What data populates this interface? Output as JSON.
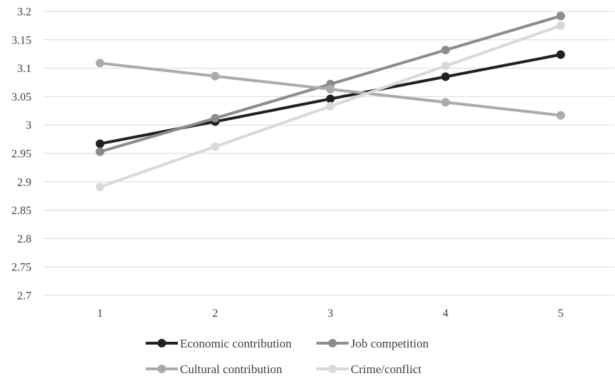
{
  "chart_data": {
    "type": "line",
    "title": "",
    "xlabel": "",
    "ylabel": "",
    "x": [
      1,
      2,
      3,
      4,
      5
    ],
    "x_tick_labels": [
      "1",
      "2",
      "3",
      "4",
      "5"
    ],
    "ylim": [
      2.7,
      3.2
    ],
    "y_ticks": [
      2.7,
      2.75,
      2.8,
      2.85,
      2.9,
      2.95,
      3.0,
      3.05,
      3.1,
      3.15,
      3.2
    ],
    "y_tick_labels": [
      "2.7",
      "2.75",
      "2.8",
      "2.85",
      "2.9",
      "2.95",
      "3",
      "3.05",
      "3.1",
      "3.15",
      "3.2"
    ],
    "grid": true,
    "legend_position": "bottom",
    "series": [
      {
        "name": "Economic contribution",
        "color": "#231f20",
        "values": [
          2.967,
          3.006,
          3.046,
          3.085,
          3.124
        ]
      },
      {
        "name": "Job competition",
        "color": "#8c8c8c",
        "values": [
          2.953,
          3.012,
          3.072,
          3.132,
          3.192
        ]
      },
      {
        "name": "Cultural contribution",
        "color": "#ababab",
        "values": [
          3.109,
          3.086,
          3.063,
          3.04,
          3.017
        ]
      },
      {
        "name": "Crime/conflict",
        "color": "#d9d9d9",
        "values": [
          2.891,
          2.962,
          3.033,
          3.104,
          3.175
        ]
      }
    ]
  }
}
